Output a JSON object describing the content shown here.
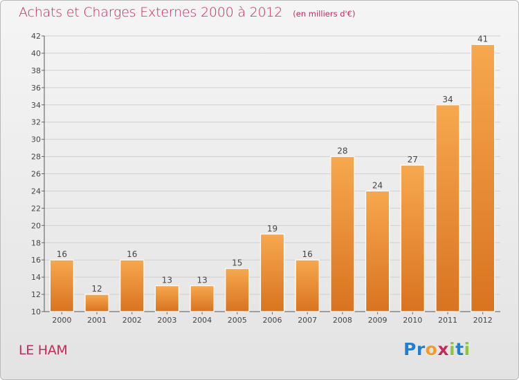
{
  "header": {
    "title": "Achats et Charges Externes 2000 à 2012",
    "unit": "(en milliers d'€)"
  },
  "location": "LE HAM",
  "brand": {
    "text": "Proxiti",
    "letter_colors": [
      "#1f7fd0",
      "#1f7fd0",
      "#f29a2e",
      "#c8285a",
      "#8dc63f",
      "#1f7fd0",
      "#8dc63f"
    ]
  },
  "colors": {
    "bar_top": "#f7a84e",
    "bar_bottom": "#d9731f",
    "bar_edge": "#ffffff",
    "grid": "#cfcfcf",
    "text": "#444444",
    "accent": "#c8285a"
  },
  "chart_data": {
    "type": "bar",
    "title": "Achats et Charges Externes 2000 à 2012",
    "xlabel": "",
    "ylabel": "",
    "categories": [
      "2000",
      "2001",
      "2002",
      "2003",
      "2004",
      "2005",
      "2006",
      "2007",
      "2008",
      "2009",
      "2010",
      "2011",
      "2012"
    ],
    "values": [
      16,
      12,
      16,
      13,
      13,
      15,
      19,
      16,
      28,
      24,
      27,
      34,
      41
    ],
    "ylim": [
      10,
      42
    ],
    "yticks": [
      10,
      12,
      14,
      16,
      18,
      20,
      22,
      24,
      26,
      28,
      30,
      32,
      34,
      36,
      38,
      40,
      42
    ],
    "grid": true,
    "data_labels": true
  }
}
